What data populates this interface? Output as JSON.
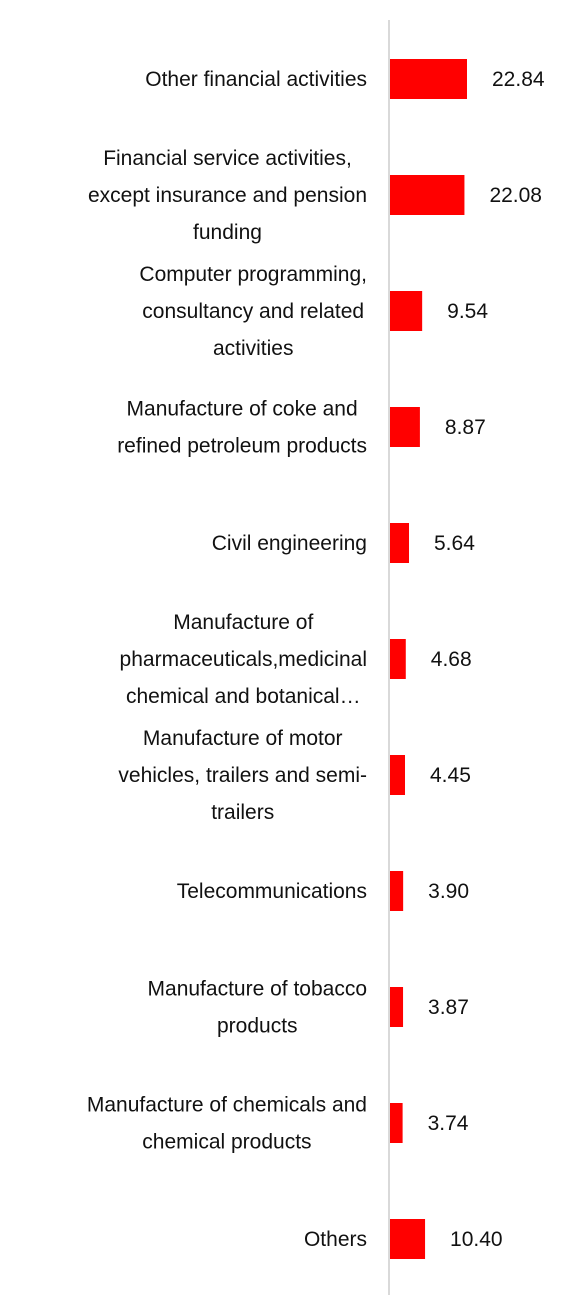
{
  "chart_data": {
    "type": "bar",
    "orientation": "horizontal",
    "title": "",
    "xlabel": "",
    "ylabel": "",
    "categories": [
      "Other financial activities",
      "Financial service activities, except insurance and pension funding",
      "Computer programming, consultancy and related activities",
      "Manufacture of coke and refined petroleum products",
      "Civil engineering",
      "Manufacture of pharmaceuticals,medicinal chemical and botanical…",
      "Manufacture of motor vehicles, trailers and semi-trailers",
      "Telecommunications",
      "Manufacture of tobacco products",
      "Manufacture of chemicals and chemical products",
      "Others"
    ],
    "values": [
      22.84,
      22.08,
      9.54,
      8.87,
      5.64,
      4.68,
      4.45,
      3.9,
      3.87,
      3.74,
      10.4
    ],
    "value_labels": [
      "22.84",
      "22.08",
      "9.54",
      "8.87",
      "5.64",
      "4.68",
      "4.45",
      "3.90",
      "3.87",
      "3.74",
      "10.40"
    ],
    "xlim": [
      0,
      25
    ],
    "grid": false,
    "legend": "none",
    "colors": {
      "bar": "#ff0000",
      "axis": "#d9d9d9",
      "text": "#111111"
    }
  }
}
